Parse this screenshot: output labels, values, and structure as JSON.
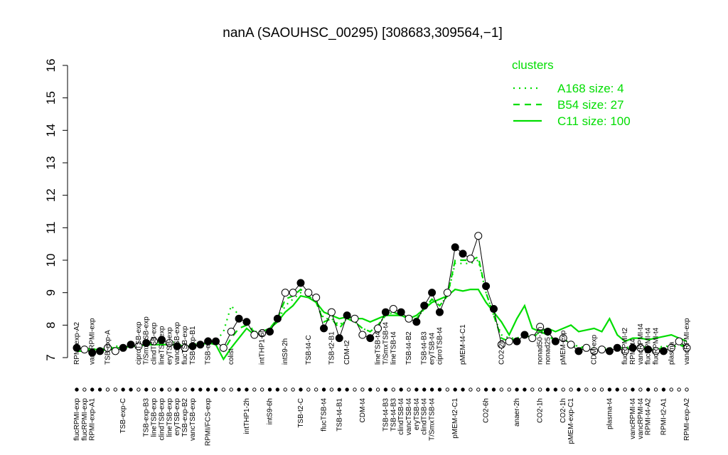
{
  "chart_data": {
    "type": "line",
    "title": "nanA (SAOUHSC_00295) [308683,309564,−1]",
    "ylim": [
      7,
      16
    ],
    "yticks": [
      7,
      8,
      9,
      10,
      11,
      12,
      13,
      14,
      15,
      16
    ],
    "legend_title": "clusters",
    "legend": "top-right",
    "points": {
      "color": "#000000",
      "values": [
        7.3,
        7.25,
        7.15,
        7.2,
        7.3,
        7.2,
        7.3,
        7.4,
        7.35,
        7.45,
        7.5,
        7.55,
        7.45,
        7.35,
        7.3,
        7.35,
        7.4,
        7.5,
        7.5,
        7.3,
        7.8,
        8.2,
        8.1,
        7.7,
        7.75,
        7.8,
        8.2,
        9.0,
        9.0,
        9.3,
        9.0,
        8.85,
        7.9,
        8.4,
        7.6,
        8.3,
        8.2,
        7.7,
        7.6,
        7.9,
        8.4,
        8.5,
        8.4,
        8.2,
        8.1,
        8.6,
        9.0,
        8.4,
        9.0,
        10.4,
        10.2,
        10.05,
        10.75,
        9.2,
        8.5,
        7.4,
        7.5,
        7.5,
        7.7,
        7.6,
        7.95,
        7.8,
        7.5,
        7.6,
        7.4,
        7.2,
        7.3,
        7.2,
        7.25,
        7.2,
        7.3,
        7.2,
        7.3,
        7.3,
        7.25,
        7.2,
        7.2,
        7.3,
        7.5,
        7.3
      ],
      "filled": [
        true,
        false,
        true,
        true,
        false,
        false,
        true,
        true,
        false,
        true,
        false,
        true,
        false,
        true,
        false,
        true,
        true,
        true,
        true,
        false,
        false,
        true,
        true,
        false,
        false,
        true,
        true,
        false,
        false,
        true,
        false,
        false,
        true,
        false,
        true,
        true,
        false,
        false,
        true,
        false,
        true,
        false,
        true,
        false,
        true,
        true,
        true,
        true,
        false,
        true,
        true,
        false,
        false,
        true,
        true,
        false,
        false,
        true,
        true,
        false,
        false,
        true,
        true,
        false,
        false,
        true,
        false,
        false,
        false,
        true,
        true,
        false,
        true,
        false,
        true,
        false,
        true,
        false,
        false,
        false
      ]
    },
    "series": [
      {
        "name": "A168 size: 4",
        "color": "#00dd00",
        "dash": "dotted",
        "values": [
          7.3,
          7.3,
          7.25,
          7.3,
          7.3,
          7.35,
          7.35,
          7.4,
          7.4,
          7.45,
          7.45,
          7.5,
          7.5,
          7.45,
          7.4,
          7.4,
          7.45,
          7.5,
          7.5,
          7.8,
          8.6,
          8.3,
          8.1,
          7.8,
          7.8,
          7.9,
          8.1,
          8.6,
          8.8,
          9.0,
          8.9,
          8.7,
          8.2,
          8.2,
          8.0,
          8.2,
          8.1,
          7.9,
          7.8,
          8.0,
          8.3,
          8.4,
          8.3,
          8.2,
          8.2,
          8.5,
          8.8,
          8.6,
          8.9,
          9.9,
          9.9,
          9.9,
          10.0,
          9.0,
          8.3,
          7.7,
          7.6,
          7.6,
          7.7,
          7.6,
          7.8,
          7.7,
          7.5,
          7.6,
          7.4,
          7.35,
          7.3,
          7.3,
          7.3,
          7.3,
          7.3,
          7.3,
          7.35,
          7.35,
          7.3,
          7.3,
          7.35,
          7.35,
          7.45,
          7.35
        ]
      },
      {
        "name": "B54 size: 27",
        "color": "#00dd00",
        "dash": "dashed",
        "values": [
          7.3,
          7.25,
          7.2,
          7.2,
          7.25,
          7.25,
          7.3,
          7.35,
          7.35,
          7.4,
          7.45,
          7.5,
          7.45,
          7.4,
          7.35,
          7.35,
          7.4,
          7.45,
          7.45,
          7.2,
          7.6,
          7.9,
          8.0,
          7.8,
          7.8,
          7.9,
          8.2,
          8.8,
          8.9,
          9.1,
          8.9,
          8.7,
          8.1,
          8.2,
          7.9,
          8.2,
          8.1,
          7.9,
          7.8,
          8.0,
          8.3,
          8.4,
          8.3,
          8.2,
          8.2,
          8.5,
          8.8,
          8.6,
          8.9,
          10.0,
          10.0,
          10.0,
          10.1,
          9.0,
          8.3,
          7.6,
          7.5,
          7.6,
          7.7,
          7.6,
          7.8,
          7.7,
          7.5,
          7.6,
          7.4,
          7.3,
          7.3,
          7.25,
          7.25,
          7.25,
          7.3,
          7.25,
          7.3,
          7.3,
          7.25,
          7.25,
          7.3,
          7.3,
          7.4,
          7.3
        ]
      },
      {
        "name": "C11 size: 100",
        "color": "#00dd00",
        "dash": "solid",
        "values": [
          7.2,
          7.2,
          7.25,
          7.25,
          7.3,
          7.3,
          7.3,
          7.35,
          7.35,
          7.4,
          7.4,
          7.4,
          7.4,
          7.4,
          7.35,
          7.35,
          7.4,
          7.45,
          7.4,
          6.95,
          7.3,
          7.6,
          7.9,
          7.7,
          7.8,
          7.9,
          8.1,
          8.4,
          8.6,
          8.9,
          8.85,
          8.7,
          8.4,
          8.3,
          8.2,
          8.25,
          8.2,
          8.2,
          8.1,
          8.2,
          8.3,
          8.3,
          8.3,
          8.2,
          8.3,
          8.5,
          8.7,
          8.8,
          8.9,
          9.1,
          9.05,
          9.1,
          9.1,
          8.7,
          8.4,
          8.1,
          7.7,
          8.2,
          8.6,
          7.9,
          7.8,
          7.9,
          7.8,
          7.9,
          8.0,
          7.8,
          7.85,
          7.9,
          7.8,
          8.2,
          7.7,
          7.5,
          7.6,
          7.6,
          7.55,
          7.6,
          7.65,
          7.7,
          7.6,
          7.5
        ]
      }
    ],
    "categories": [
      "flucRPMI-exp",
      "flucRPMI-exp",
      "RPMI-exp-A1",
      null,
      null,
      null,
      "TSB-exp-C",
      null,
      null,
      "TSB-exp-B3",
      "lineTSB-exp",
      "clindTSB-exp",
      "lineTSB-exp",
      "eryTSB-exp",
      "TSB-exp-B2",
      "vancTSB-exp",
      null,
      "RPMI/FCS-exp",
      null,
      null,
      null,
      null,
      "intTHP1-2h",
      null,
      null,
      "intS9-6h",
      null,
      null,
      null,
      "TSB-t2-C",
      null,
      null,
      "flucTSB-t4",
      null,
      "TSB-t4-B1",
      null,
      null,
      "CDM-t4",
      null,
      null,
      "TSB-t4-B3",
      "TSB-t4-B3",
      "clindTSB-t4",
      "vancTSB-t4",
      "eryTSB-t4",
      "clindTSB-t4",
      "T/SmxTSB-t4",
      null,
      null,
      "pMEM-t2-C1",
      null,
      null,
      null,
      "CO2-6h",
      null,
      null,
      null,
      "anaer-2h",
      null,
      null,
      "CO2-1h",
      null,
      null,
      "CO2-1h",
      "pMEM-exp-C1",
      null,
      null,
      null,
      null,
      "plasma-t4",
      null,
      null,
      "vancRPMI-t4",
      "vancRPMI-t4",
      "RPMI-t4-A2",
      null,
      "RPMI-t2-A1",
      null,
      null,
      "RPMI-exp-A2"
    ],
    "top_categories": [
      "RPMI-exp-A2",
      null,
      "vancRPMI-exp",
      null,
      "TSB-exp-A",
      null,
      null,
      null,
      "ciproTSB-exp",
      "T/SmxTSB-exp",
      "clindTSB-exp",
      "lineTSB-exp",
      "eryTSB-exp",
      "vancTSB-exp",
      "flucTSB-exp",
      "TSB-exp-B1",
      null,
      "TSB-exp",
      null,
      null,
      "colist",
      null,
      null,
      null,
      "intTHP1-6h",
      null,
      null,
      "intS9-2h",
      null,
      null,
      "TSB-t4-C",
      null,
      null,
      "TSB-t2-B1",
      null,
      "CDM-t2",
      null,
      null,
      null,
      "lineTSB-t4",
      "T/SmxTSB-t4",
      "lineTSB-t4",
      null,
      "TSB-t4-B2",
      null,
      "TSB-t4-B3",
      "eryTSB-t4",
      "ciproTSB-t4",
      null,
      null,
      "pMEM-t4-C1",
      null,
      null,
      null,
      null,
      "CO2-2h",
      null,
      null,
      null,
      null,
      "nonad50-1h",
      "nonad25",
      null,
      "pMEM-exp",
      null,
      null,
      null,
      "CDM-exp",
      null,
      null,
      null,
      "flucRPMI-t2",
      "RPMI-t4",
      "vancRPMI-t4",
      "flucRPMI-t4",
      "flucRPMI-t4",
      null,
      "plasma",
      null,
      "vancRPMI-exp"
    ]
  }
}
